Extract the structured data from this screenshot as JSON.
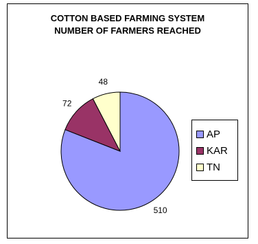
{
  "chart_data": {
    "type": "pie",
    "title": "COTTON BASED FARMING SYSTEM",
    "subtitle": "NUMBER OF FARMERS REACHED",
    "categories": [
      "AP",
      "KAR",
      "TN"
    ],
    "values": [
      510,
      72,
      48
    ],
    "colors": [
      "#9999FF",
      "#993366",
      "#FFFFCC"
    ],
    "data_labels": [
      "510",
      "72",
      "48"
    ],
    "legend_position": "right"
  }
}
